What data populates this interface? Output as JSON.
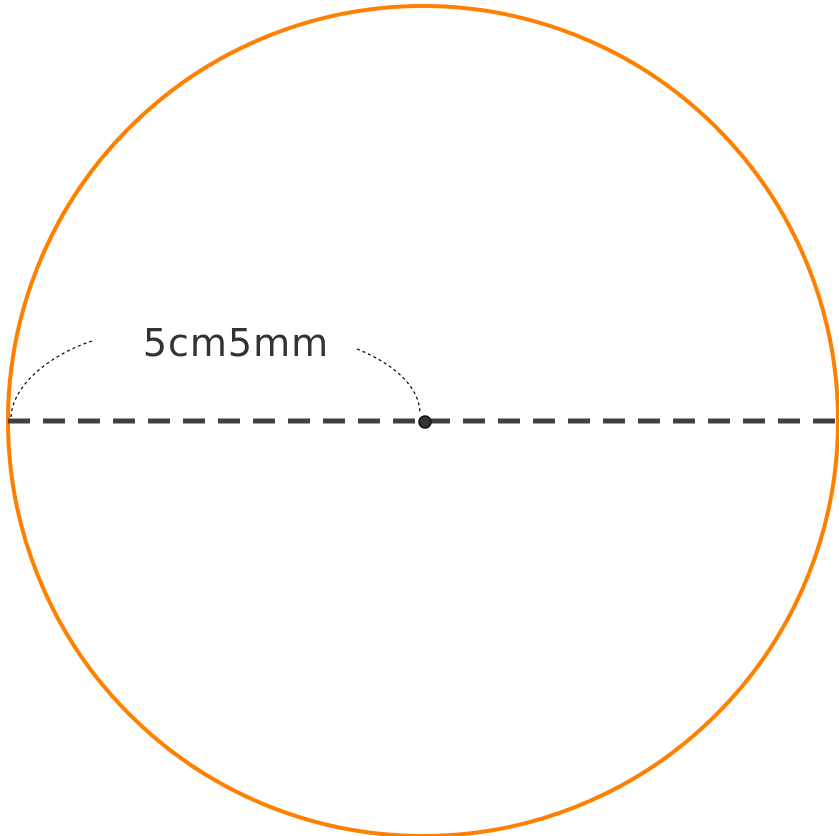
{
  "diagram": {
    "radius_label": "5cm5mm"
  },
  "colors": {
    "circle": "#ff8000",
    "diameter": "#404040",
    "center": "#333333",
    "brace": "#000000",
    "label": "#333333",
    "background": "#ffffff"
  }
}
